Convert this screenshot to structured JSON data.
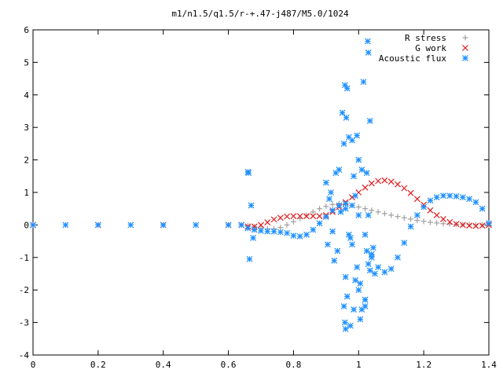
{
  "chart_data": {
    "type": "scatter",
    "title": "m1/n1.5/q1.5/r-+.47-j487/M5.0/1024",
    "xlabel": "",
    "ylabel": "",
    "xlim": [
      0,
      1.4
    ],
    "ylim": [
      -4,
      6
    ],
    "grid": false,
    "legend_position": "top-right",
    "x_ticks": [
      "0",
      "0.2",
      "0.4",
      "0.6",
      "0.8",
      "1",
      "1.2",
      "1.4"
    ],
    "y_ticks": [
      "6",
      "5",
      "4",
      "3",
      "2",
      "1",
      "0",
      "-1",
      "-2",
      "-3",
      "-4"
    ],
    "series": [
      {
        "name": "R stress",
        "marker": "plus",
        "color": "#a0a0a0",
        "x": [
          0.0,
          0.2,
          0.4,
          0.6,
          0.64,
          0.66,
          0.68,
          0.7,
          0.72,
          0.74,
          0.76,
          0.78,
          0.8,
          0.82,
          0.84,
          0.86,
          0.88,
          0.9,
          0.92,
          0.94,
          0.96,
          0.98,
          1.0,
          1.02,
          1.04,
          1.06,
          1.08,
          1.1,
          1.12,
          1.14,
          1.16,
          1.18,
          1.2,
          1.22,
          1.24,
          1.26,
          1.28,
          1.3,
          1.32,
          1.34,
          1.36,
          1.38,
          1.4
        ],
        "y": [
          0.0,
          0.0,
          0.0,
          0.0,
          0.0,
          -0.02,
          -0.05,
          -0.1,
          -0.12,
          -0.12,
          -0.08,
          0.0,
          0.1,
          0.2,
          0.3,
          0.4,
          0.5,
          0.57,
          0.63,
          0.66,
          0.65,
          0.6,
          0.55,
          0.5,
          0.45,
          0.4,
          0.35,
          0.3,
          0.26,
          0.22,
          0.18,
          0.14,
          0.11,
          0.08,
          0.06,
          0.04,
          0.03,
          0.02,
          0.01,
          0.01,
          0.0,
          0.0,
          0.0
        ]
      },
      {
        "name": "G work",
        "marker": "cross",
        "color": "#e41a1c",
        "x": [
          0.0,
          0.2,
          0.4,
          0.6,
          0.64,
          0.66,
          0.68,
          0.7,
          0.72,
          0.74,
          0.76,
          0.78,
          0.8,
          0.82,
          0.84,
          0.86,
          0.88,
          0.9,
          0.92,
          0.94,
          0.96,
          0.98,
          1.0,
          1.02,
          1.04,
          1.06,
          1.08,
          1.1,
          1.12,
          1.14,
          1.16,
          1.18,
          1.2,
          1.22,
          1.24,
          1.26,
          1.28,
          1.3,
          1.32,
          1.34,
          1.36,
          1.38,
          1.4
        ],
        "y": [
          0.0,
          0.0,
          0.0,
          0.0,
          0.0,
          -0.05,
          -0.05,
          0.0,
          0.08,
          0.17,
          0.22,
          0.26,
          0.27,
          0.27,
          0.27,
          0.27,
          0.27,
          0.3,
          0.4,
          0.55,
          0.7,
          0.85,
          1.0,
          1.15,
          1.28,
          1.35,
          1.37,
          1.33,
          1.25,
          1.13,
          0.98,
          0.8,
          0.62,
          0.45,
          0.3,
          0.18,
          0.09,
          0.03,
          0.0,
          -0.02,
          -0.03,
          -0.02,
          0.0
        ]
      },
      {
        "name": "Acoustic flux",
        "marker": "star",
        "color": "#1e90ff",
        "x": [
          0.0,
          0.1,
          0.2,
          0.3,
          0.4,
          0.5,
          0.6,
          0.64,
          0.66,
          0.68,
          0.7,
          0.72,
          0.74,
          0.76,
          0.78,
          0.8,
          0.82,
          0.84,
          0.86,
          0.88,
          0.9,
          0.92,
          0.94,
          0.96,
          0.98,
          1.0,
          1.02,
          1.04,
          1.06,
          1.08,
          1.1,
          1.12,
          1.14,
          1.16,
          1.18,
          1.2,
          1.22,
          1.24,
          1.26,
          1.28,
          1.3,
          1.32,
          1.34,
          1.36,
          1.38,
          1.4,
          0.66,
          0.662,
          0.67,
          0.665,
          0.676,
          0.9,
          0.905,
          0.91,
          0.915,
          0.92,
          0.925,
          0.93,
          0.935,
          0.94,
          0.945,
          0.95,
          0.955,
          0.96,
          0.965,
          0.97,
          0.975,
          0.98,
          0.985,
          0.99,
          0.995,
          1.0,
          1.005,
          1.01,
          1.015,
          1.02,
          1.025,
          1.03,
          1.035,
          1.04,
          1.045,
          1.05,
          0.958,
          0.962,
          0.975,
          0.985,
          0.995,
          1.005,
          1.02,
          1.025,
          1.028,
          1.03,
          0.955,
          0.958,
          0.96,
          0.965,
          0.96,
          0.97,
          0.98,
          0.99,
          1.0,
          1.01,
          1.02,
          1.03,
          1.035
        ],
        "y": [
          0.0,
          0.0,
          0.0,
          0.0,
          0.0,
          0.0,
          0.0,
          0.0,
          -0.1,
          -0.15,
          -0.18,
          -0.2,
          -0.2,
          -0.22,
          -0.25,
          -0.33,
          -0.35,
          -0.3,
          -0.15,
          0.05,
          0.25,
          0.45,
          0.6,
          0.65,
          0.6,
          0.3,
          -0.3,
          -0.9,
          -1.3,
          -1.45,
          -1.35,
          -1.0,
          -0.55,
          -0.05,
          0.3,
          0.55,
          0.75,
          0.85,
          0.9,
          0.9,
          0.88,
          0.85,
          0.8,
          0.7,
          0.5,
          0.05,
          1.63,
          1.6,
          0.6,
          -1.05,
          -0.4,
          1.3,
          -0.6,
          0.8,
          1.0,
          -0.2,
          -1.1,
          1.6,
          -0.8,
          1.7,
          0.4,
          3.45,
          2.5,
          -1.6,
          4.2,
          2.7,
          -0.4,
          2.6,
          1.5,
          0.9,
          -1.3,
          2.0,
          -1.8,
          1.7,
          4.4,
          -2.3,
          1.6,
          0.3,
          3.2,
          -1.0,
          -0.7,
          -1.5,
          4.3,
          3.3,
          -3.1,
          -2.6,
          2.75,
          -2.9,
          -2.5,
          -0.8,
          5.65,
          5.3,
          -2.5,
          -3.0,
          -3.2,
          -2.2,
          0.5,
          -0.3,
          -0.6,
          -1.7,
          -2.0,
          -2.6,
          -2.3,
          -1.2,
          -1.4
        ]
      }
    ]
  }
}
